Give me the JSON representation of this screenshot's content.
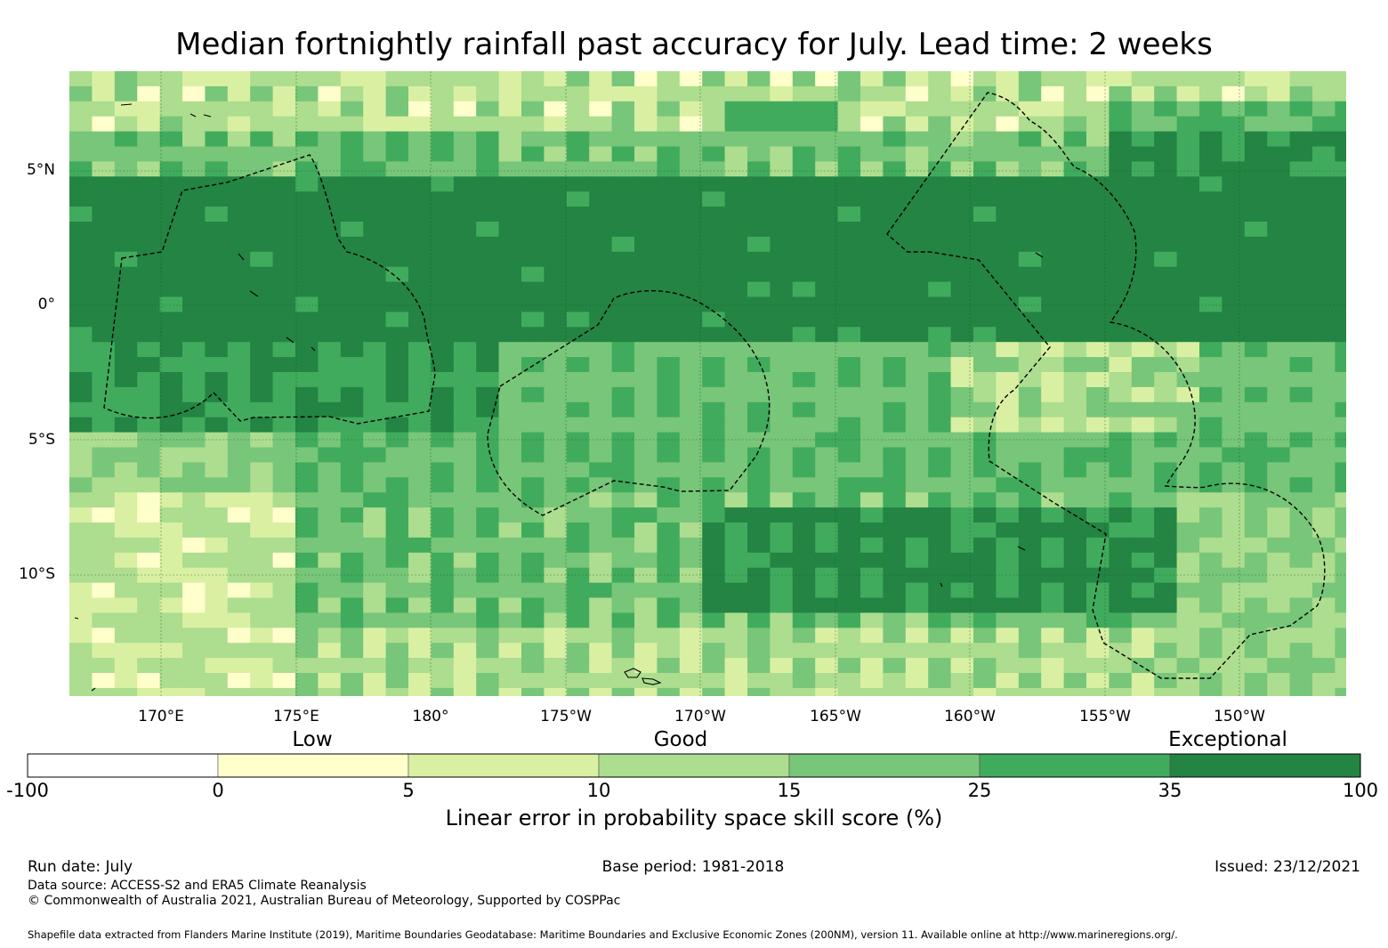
{
  "title": "Median fortnightly rainfall past accuracy for July. Lead time: 2 weeks",
  "map": {
    "lat_labels": [
      "5°N",
      "0°",
      "5°S",
      "10°S"
    ],
    "lon_labels": [
      "170°E",
      "175°E",
      "180°",
      "175°W",
      "170°W",
      "165°W",
      "160°W",
      "155°W",
      "150°W"
    ],
    "region": {
      "lon_min": 166.6,
      "lon_max": 213.8,
      "lat_min": -14.3,
      "lat_max": 8.8
    },
    "gridlines": true,
    "boundary_style": "dashed black"
  },
  "colorbar": {
    "category_labels": [
      "Low",
      "Good",
      "Exceptional"
    ],
    "ticks": [
      "-100",
      "0",
      "5",
      "10",
      "15",
      "25",
      "35",
      "100"
    ],
    "colors": [
      "#ffffff",
      "#ffffcc",
      "#d9f0a3",
      "#addd8e",
      "#78c679",
      "#41ab5d",
      "#238443"
    ],
    "label": "Linear error in probability space skill score (%)"
  },
  "footer": {
    "run_date": "Run date: July",
    "base_period": "Base period: 1981-2018",
    "issued": "Issued: 23/12/2021",
    "data_source": "Data source: ACCESS-S2 and ERA5 Climate Reanalysis",
    "copyright": "© Commonwealth of Australia 2021, Australian Bureau of Meteorology, Supported by COSPPac",
    "shapefile": "Shapefile data extracted from Flanders Marine Institute (2019), Maritime Boundaries Geodatabase: Maritime Boundaries and Exclusive Economic Zones (200NM), version 11. Available online at http://www.marineregions.org/."
  }
}
